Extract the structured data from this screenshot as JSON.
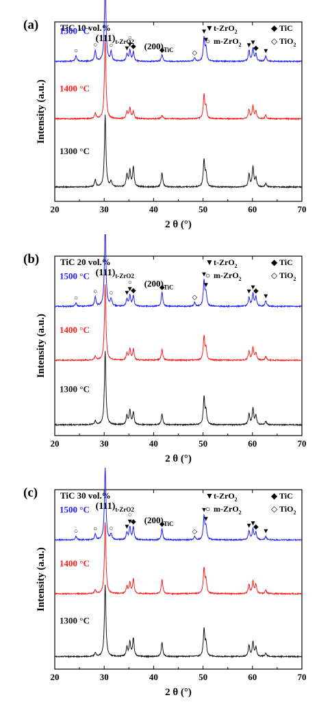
{
  "xlabel": "2 θ (°)",
  "ylabel": "Intensity (a.u.)",
  "xticks": [
    "20",
    "30",
    "40",
    "50",
    "60",
    "70"
  ],
  "legend": [
    {
      "symbol": "▼",
      "label": "t-ZrO",
      "sub": "2"
    },
    {
      "symbol": "◆",
      "label": "TiC",
      "sub": ""
    },
    {
      "symbol": "○",
      "label": "m-ZrO",
      "sub": "2"
    },
    {
      "symbol": "◇",
      "label": "TiO",
      "sub": "2"
    }
  ],
  "peak_labels": {
    "p111": {
      "main": "(111)",
      "sub": "t-ZrO2"
    },
    "p200": {
      "main": "(200)",
      "sub": "TiC"
    }
  },
  "colors": {
    "1500 °C": "#1a1aff",
    "1400 °C": "#ff1a1a",
    "1300 °C": "#111111"
  },
  "chart_data": [
    {
      "type": "line",
      "panel_label": "(a)",
      "title": "TiC 10 vol.%",
      "xlabel": "2 θ (°)",
      "ylabel": "Intensity (a.u.)",
      "xlim": [
        20,
        70
      ],
      "grid": false,
      "legend_position": "top-right",
      "series": [
        {
          "name": "1500 °C",
          "color": "#1a1aff",
          "baseline": 0.78,
          "peaks": [
            [
              24.3,
              0.03
            ],
            [
              28.2,
              0.06
            ],
            [
              30.2,
              0.45
            ],
            [
              31.4,
              0.05
            ],
            [
              34.6,
              0.04
            ],
            [
              35.2,
              0.06
            ],
            [
              35.9,
              0.05
            ],
            [
              41.7,
              0.04
            ],
            [
              48.3,
              0.02
            ],
            [
              50.2,
              0.13
            ],
            [
              50.6,
              0.07
            ],
            [
              59.3,
              0.06
            ],
            [
              60.1,
              0.07
            ],
            [
              60.7,
              0.04
            ],
            [
              62.7,
              0.03
            ]
          ]
        },
        {
          "name": "1400 °C",
          "color": "#ff1a1a",
          "baseline": 0.46,
          "peaks": [
            [
              28.2,
              0.03
            ],
            [
              30.2,
              0.45
            ],
            [
              34.6,
              0.04
            ],
            [
              35.2,
              0.06
            ],
            [
              35.9,
              0.04
            ],
            [
              41.7,
              0.02
            ],
            [
              50.2,
              0.13
            ],
            [
              50.6,
              0.06
            ],
            [
              59.3,
              0.05
            ],
            [
              60.1,
              0.07
            ],
            [
              60.7,
              0.04
            ],
            [
              62.7,
              0.02
            ]
          ]
        },
        {
          "name": "1300 °C",
          "color": "#111111",
          "baseline": 0.08,
          "peaks": [
            [
              28.2,
              0.04
            ],
            [
              30.2,
              0.4
            ],
            [
              31.4,
              0.03
            ],
            [
              34.6,
              0.07
            ],
            [
              35.2,
              0.09
            ],
            [
              35.9,
              0.11
            ],
            [
              41.7,
              0.08
            ],
            [
              50.2,
              0.15
            ],
            [
              50.6,
              0.07
            ],
            [
              59.3,
              0.07
            ],
            [
              60.1,
              0.11
            ],
            [
              60.7,
              0.05
            ],
            [
              62.7,
              0.02
            ]
          ]
        }
      ]
    },
    {
      "type": "line",
      "panel_label": "(b)",
      "title": "TiC 20 vol.%",
      "xlabel": "2 θ (°)",
      "ylabel": "Intensity (a.u.)",
      "xlim": [
        20,
        70
      ],
      "grid": false,
      "legend_position": "top-right",
      "series": [
        {
          "name": "1500 °C",
          "color": "#1a1aff",
          "baseline": 0.72,
          "peaks": [
            [
              24.3,
              0.02
            ],
            [
              28.2,
              0.05
            ],
            [
              30.2,
              0.45
            ],
            [
              31.4,
              0.04
            ],
            [
              34.6,
              0.04
            ],
            [
              35.2,
              0.06
            ],
            [
              35.9,
              0.06
            ],
            [
              41.7,
              0.08
            ],
            [
              48.3,
              0.02
            ],
            [
              50.2,
              0.14
            ],
            [
              50.6,
              0.07
            ],
            [
              59.3,
              0.05
            ],
            [
              60.1,
              0.07
            ],
            [
              60.7,
              0.05
            ],
            [
              62.7,
              0.03
            ]
          ]
        },
        {
          "name": "1400 °C",
          "color": "#ff1a1a",
          "baseline": 0.42,
          "peaks": [
            [
              28.2,
              0.02
            ],
            [
              30.2,
              0.42
            ],
            [
              34.6,
              0.04
            ],
            [
              35.2,
              0.06
            ],
            [
              35.9,
              0.06
            ],
            [
              41.7,
              0.06
            ],
            [
              50.2,
              0.13
            ],
            [
              50.6,
              0.06
            ],
            [
              59.3,
              0.05
            ],
            [
              60.1,
              0.07
            ],
            [
              60.7,
              0.04
            ],
            [
              62.7,
              0.02
            ]
          ]
        },
        {
          "name": "1300 °C",
          "color": "#111111",
          "baseline": 0.06,
          "peaks": [
            [
              28.2,
              0.02
            ],
            [
              30.2,
              0.41
            ],
            [
              34.6,
              0.05
            ],
            [
              35.2,
              0.08
            ],
            [
              35.9,
              0.07
            ],
            [
              41.7,
              0.06
            ],
            [
              50.2,
              0.15
            ],
            [
              50.6,
              0.07
            ],
            [
              59.3,
              0.06
            ],
            [
              60.1,
              0.09
            ],
            [
              60.7,
              0.05
            ],
            [
              62.7,
              0.02
            ]
          ]
        }
      ]
    },
    {
      "type": "line",
      "panel_label": "(c)",
      "title": "TiC 30 vol.%",
      "xlabel": "2 θ (°)",
      "ylabel": "Intensity (a.u.)",
      "xlim": [
        20,
        70
      ],
      "grid": false,
      "legend_position": "top-right",
      "series": [
        {
          "name": "1500 °C",
          "color": "#1a1aff",
          "baseline": 0.72,
          "peaks": [
            [
              24.3,
              0.02
            ],
            [
              28.2,
              0.03
            ],
            [
              30.2,
              0.4
            ],
            [
              31.4,
              0.03
            ],
            [
              34.6,
              0.04
            ],
            [
              35.2,
              0.07
            ],
            [
              35.9,
              0.07
            ],
            [
              41.7,
              0.06
            ],
            [
              48.3,
              0.02
            ],
            [
              50.2,
              0.13
            ],
            [
              50.6,
              0.07
            ],
            [
              59.3,
              0.05
            ],
            [
              60.1,
              0.06
            ],
            [
              60.7,
              0.04
            ],
            [
              62.7,
              0.02
            ]
          ]
        },
        {
          "name": "1400 °C",
          "color": "#ff1a1a",
          "baseline": 0.42,
          "peaks": [
            [
              28.2,
              0.02
            ],
            [
              30.2,
              0.4
            ],
            [
              34.6,
              0.04
            ],
            [
              35.2,
              0.06
            ],
            [
              35.9,
              0.08
            ],
            [
              41.7,
              0.08
            ],
            [
              50.2,
              0.14
            ],
            [
              50.6,
              0.07
            ],
            [
              59.3,
              0.05
            ],
            [
              60.1,
              0.07
            ],
            [
              60.7,
              0.05
            ],
            [
              62.7,
              0.02
            ]
          ]
        },
        {
          "name": "1300 °C",
          "color": "#111111",
          "baseline": 0.07,
          "peaks": [
            [
              28.2,
              0.02
            ],
            [
              30.2,
              0.4
            ],
            [
              34.6,
              0.05
            ],
            [
              35.2,
              0.08
            ],
            [
              35.9,
              0.1
            ],
            [
              41.7,
              0.08
            ],
            [
              50.2,
              0.15
            ],
            [
              50.6,
              0.07
            ],
            [
              59.3,
              0.06
            ],
            [
              60.1,
              0.08
            ],
            [
              60.7,
              0.05
            ],
            [
              62.7,
              0.02
            ]
          ]
        }
      ]
    }
  ],
  "markers": {
    "t": [
      30.2,
      34.6,
      35.2,
      50.2,
      50.6,
      59.3,
      60.1,
      62.7
    ],
    "tic": [
      35.9,
      41.7,
      60.7
    ],
    "m": [
      24.3,
      28.2,
      31.4,
      35.2
    ],
    "tio": [
      48.3
    ]
  }
}
